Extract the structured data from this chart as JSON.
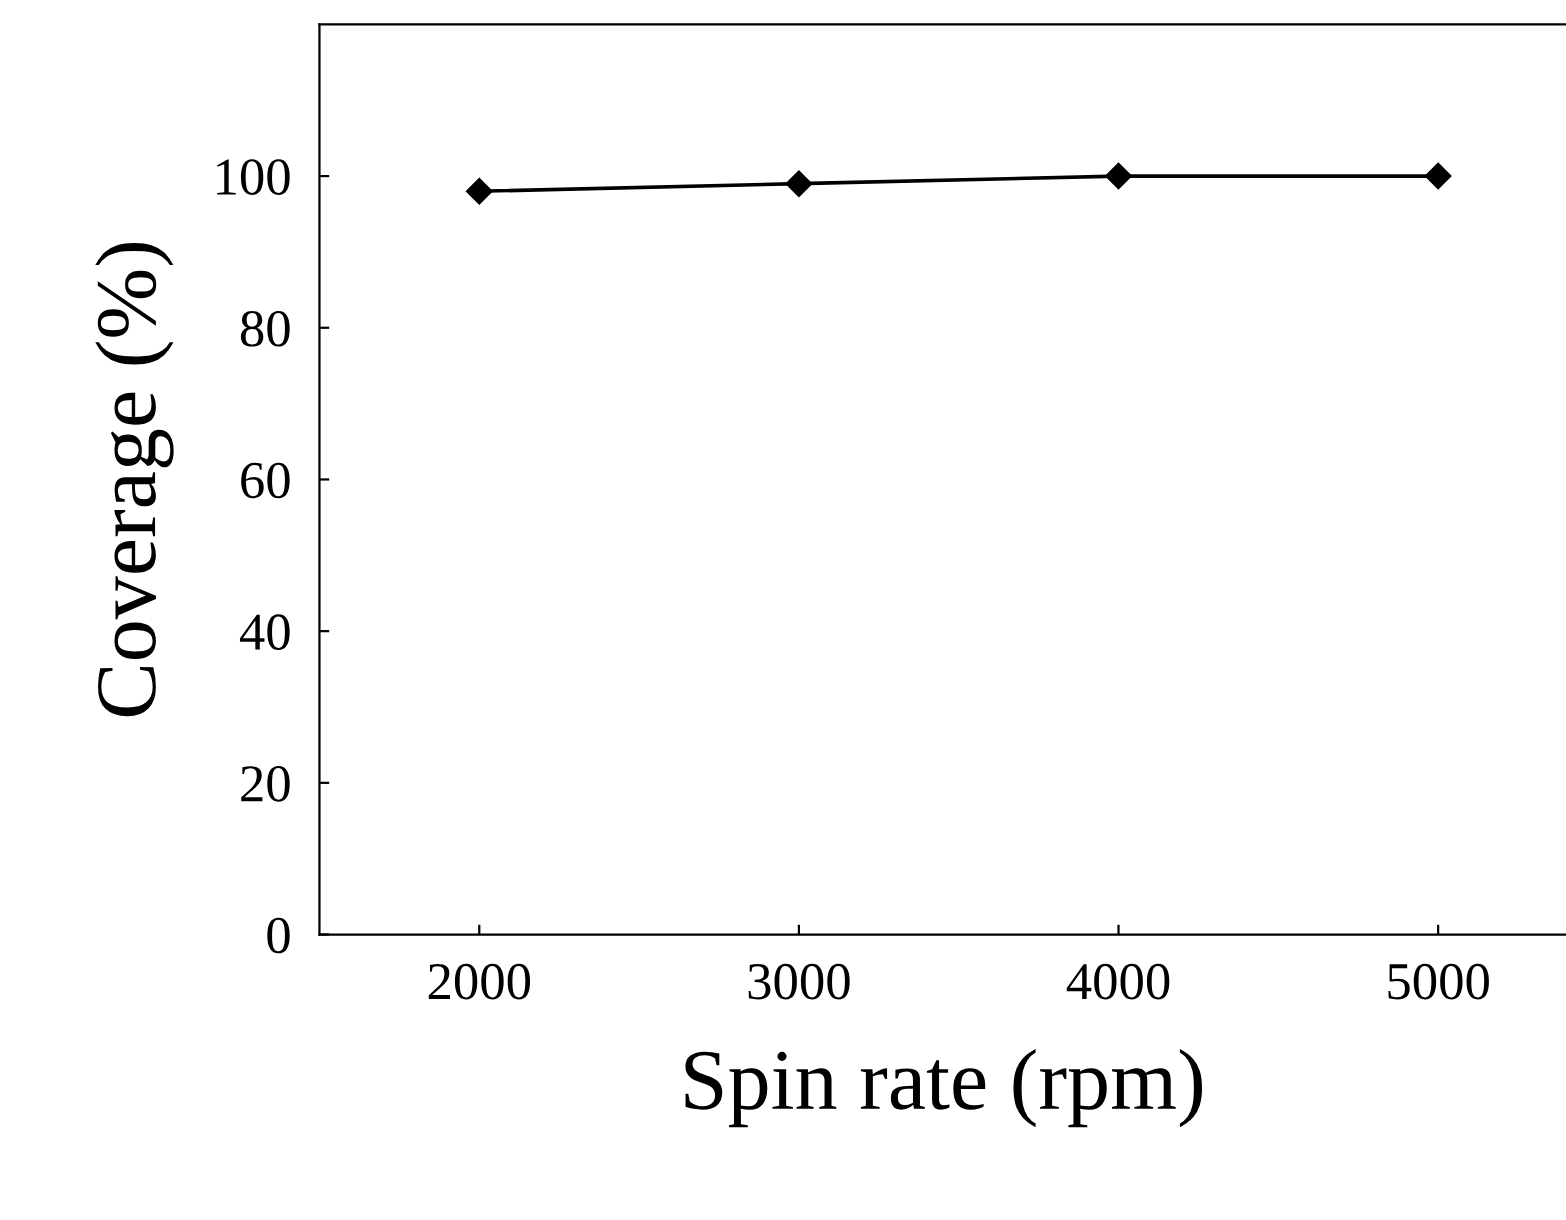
{
  "chart_data": {
    "type": "line",
    "xlabel": "Spin rate (rpm)",
    "ylabel": "Coverage (%)",
    "x": [
      2000,
      3000,
      4000,
      5000
    ],
    "series": [
      {
        "color": "#000000",
        "values": [
          98,
          99,
          100,
          100
        ]
      }
    ],
    "xlim": [
      1500,
      5400
    ],
    "xticks": [
      2000,
      3000,
      4000,
      5000
    ],
    "ylim": [
      0,
      120
    ],
    "yticks": [
      0,
      20,
      40,
      60,
      80,
      100
    ],
    "marker": "diamond",
    "line_style": "solid",
    "grid": false,
    "legend": false
  }
}
